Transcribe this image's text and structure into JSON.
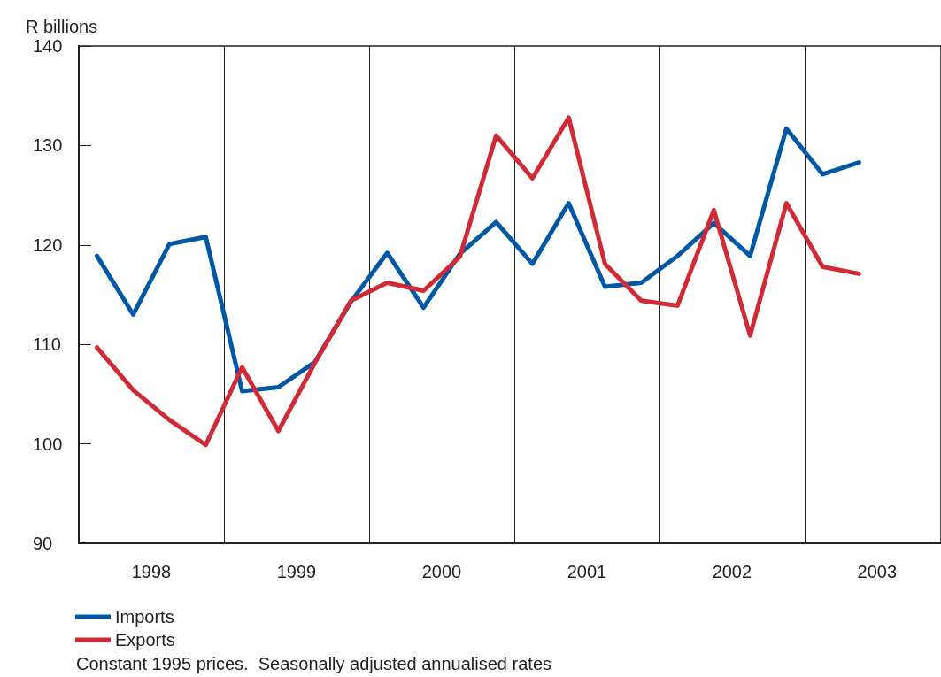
{
  "chart_data": {
    "type": "line",
    "ylabel": "R billions",
    "x": [
      1998.125,
      1998.375,
      1998.625,
      1998.875,
      1999.125,
      1999.375,
      1999.625,
      1999.875,
      2000.125,
      2000.375,
      2000.625,
      2000.875,
      2001.125,
      2001.375,
      2001.625,
      2001.875,
      2002.125,
      2002.375,
      2002.625,
      2002.875,
      2003.125,
      2003.375
    ],
    "series": [
      {
        "name": "Imports",
        "color": "#0057a3",
        "values": [
          118.9,
          113.0,
          120.1,
          120.8,
          105.3,
          105.7,
          108.2,
          114.3,
          119.2,
          113.7,
          119.1,
          122.3,
          118.1,
          124.2,
          115.8,
          116.2,
          118.9,
          122.2,
          118.9,
          131.7,
          127.1,
          128.3
        ]
      },
      {
        "name": "Exports",
        "color": "#cf2a36",
        "values": [
          109.7,
          105.4,
          102.4,
          99.9,
          107.7,
          101.3,
          108.1,
          114.4,
          116.2,
          115.4,
          118.8,
          131.0,
          126.7,
          132.8,
          118.1,
          114.4,
          113.9,
          123.5,
          110.9,
          124.2,
          117.8,
          117.1
        ]
      }
    ],
    "xlim": [
      1998,
      2003.94
    ],
    "xticks": [
      {
        "value": 1998.5,
        "label": "1998"
      },
      {
        "value": 1999,
        "label": null
      },
      {
        "value": 1999.5,
        "label": "1999"
      },
      {
        "value": 2000,
        "label": null
      },
      {
        "value": 2000.5,
        "label": "2000"
      },
      {
        "value": 2001,
        "label": null
      },
      {
        "value": 2001.5,
        "label": "2001"
      },
      {
        "value": 2002,
        "label": null
      },
      {
        "value": 2002.5,
        "label": "2002"
      },
      {
        "value": 2003,
        "label": null
      },
      {
        "value": 2003.5,
        "label": "2003"
      }
    ],
    "ylim": [
      90,
      140
    ],
    "yticks": [
      90,
      100,
      110,
      120,
      130,
      140
    ],
    "grid": "x",
    "legend": "bottom left",
    "marker": "none",
    "line_style": "solid",
    "annotations": [
      "Constant 1995 prices.  Seasonally adjusted annualised rates"
    ]
  }
}
